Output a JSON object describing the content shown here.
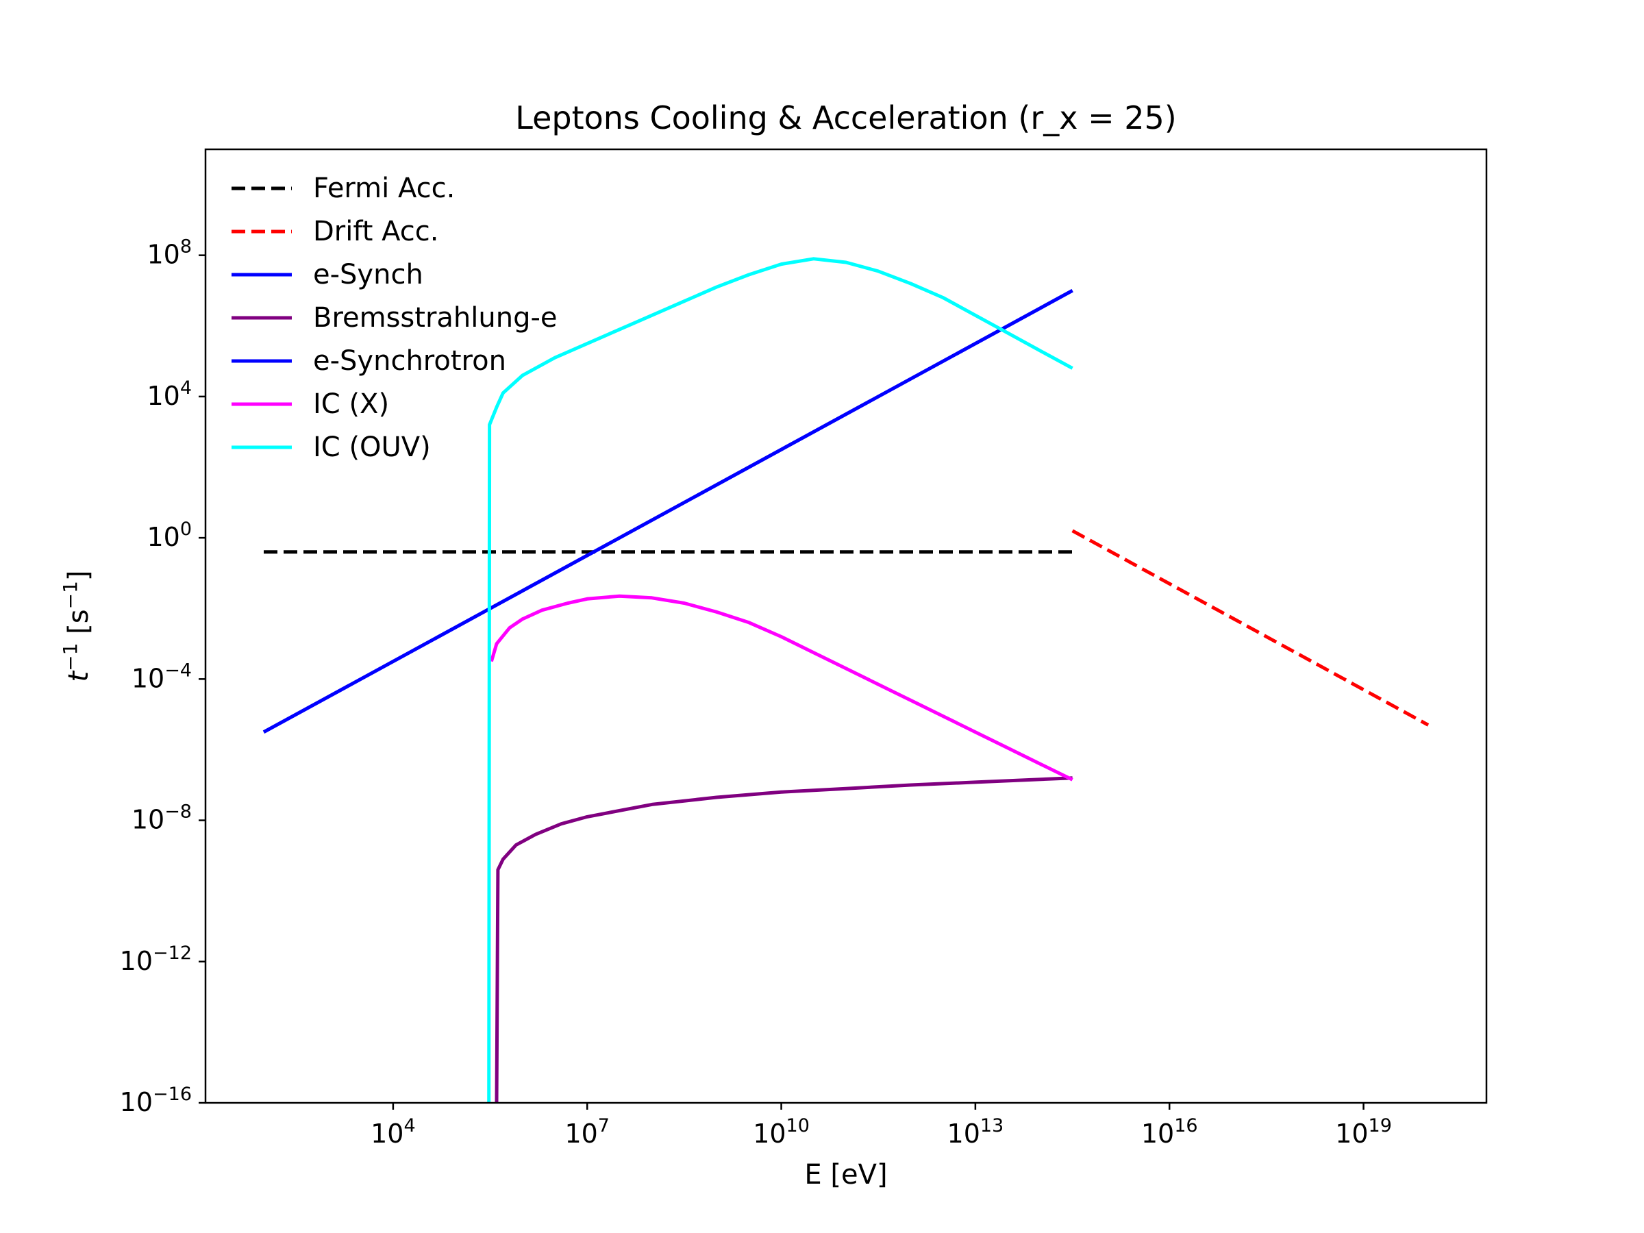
{
  "chart_data": {
    "type": "line",
    "title": "Leptons Cooling & Acceleration (r_x = 25)",
    "xlabel": "E [eV]",
    "ylabel": "t^{-1} [s^{-1}]",
    "xscale": "log",
    "yscale": "log",
    "xlim_exp": [
      1.1,
      20.9
    ],
    "ylim_exp": [
      -16,
      11
    ],
    "x_ticks": [
      {
        "base": "10",
        "exp": "4",
        "value_exp": 4
      },
      {
        "base": "10",
        "exp": "7",
        "value_exp": 7
      },
      {
        "base": "10",
        "exp": "10",
        "value_exp": 10
      },
      {
        "base": "10",
        "exp": "13",
        "value_exp": 13
      },
      {
        "base": "10",
        "exp": "16",
        "value_exp": 16
      },
      {
        "base": "10",
        "exp": "19",
        "value_exp": 19
      }
    ],
    "y_ticks": [
      {
        "base": "10",
        "exp": "−16",
        "value_exp": -16
      },
      {
        "base": "10",
        "exp": "−12",
        "value_exp": -12
      },
      {
        "base": "10",
        "exp": "−8",
        "value_exp": -8
      },
      {
        "base": "10",
        "exp": "−4",
        "value_exp": -4
      },
      {
        "base": "10",
        "exp": "0",
        "value_exp": 0
      },
      {
        "base": "10",
        "exp": "4",
        "value_exp": 4
      },
      {
        "base": "10",
        "exp": "8",
        "value_exp": 8
      }
    ],
    "grid": false,
    "legend_position": "top-left",
    "series": [
      {
        "name": "Fermi Acc.",
        "color": "#000000",
        "dashed": true,
        "points": [
          [
            2,
            -0.4
          ],
          [
            14.5,
            -0.4
          ]
        ]
      },
      {
        "name": "Drift Acc.",
        "color": "#ff0000",
        "dashed": true,
        "points": [
          [
            14.5,
            0.2
          ],
          [
            20,
            -5.3
          ]
        ]
      },
      {
        "name": "e-Synch",
        "color": "#0000ff",
        "dashed": false,
        "points": [
          [
            2,
            -5.5
          ],
          [
            14.5,
            7.0
          ]
        ]
      },
      {
        "name": "Bremsstrahlung-e",
        "color": "#800080",
        "dashed": false,
        "points": [
          [
            5.6,
            -16
          ],
          [
            5.62,
            -9.4
          ],
          [
            5.7,
            -9.1
          ],
          [
            5.9,
            -8.7
          ],
          [
            6.2,
            -8.4
          ],
          [
            6.6,
            -8.1
          ],
          [
            7.0,
            -7.9
          ],
          [
            8.0,
            -7.55
          ],
          [
            9.0,
            -7.35
          ],
          [
            10.0,
            -7.2
          ],
          [
            11.0,
            -7.1
          ],
          [
            12.0,
            -7.0
          ],
          [
            13.0,
            -6.92
          ],
          [
            14.5,
            -6.8
          ]
        ]
      },
      {
        "name": "e-Synchrotron",
        "color": "#0000ff",
        "dashed": false,
        "points": [
          [
            2,
            -5.5
          ],
          [
            14.5,
            7.0
          ]
        ]
      },
      {
        "name": "IC (X)",
        "color": "#ff00ff",
        "dashed": false,
        "points": [
          [
            5.52,
            -3.5
          ],
          [
            5.6,
            -3.0
          ],
          [
            5.8,
            -2.55
          ],
          [
            6.0,
            -2.3
          ],
          [
            6.3,
            -2.05
          ],
          [
            6.7,
            -1.85
          ],
          [
            7.0,
            -1.73
          ],
          [
            7.5,
            -1.65
          ],
          [
            8.0,
            -1.7
          ],
          [
            8.5,
            -1.85
          ],
          [
            9.0,
            -2.1
          ],
          [
            9.5,
            -2.4
          ],
          [
            10.0,
            -2.8
          ],
          [
            10.5,
            -3.25
          ],
          [
            11.0,
            -3.7
          ],
          [
            11.5,
            -4.15
          ],
          [
            12.0,
            -4.6
          ],
          [
            12.5,
            -5.05
          ],
          [
            13.0,
            -5.5
          ],
          [
            13.5,
            -5.95
          ],
          [
            14.0,
            -6.4
          ],
          [
            14.5,
            -6.85
          ]
        ]
      },
      {
        "name": "IC (OUV)",
        "color": "#00ffff",
        "dashed": false,
        "points": [
          [
            5.48,
            -16
          ],
          [
            5.49,
            3.2
          ],
          [
            5.6,
            3.7
          ],
          [
            5.7,
            4.1
          ],
          [
            6.0,
            4.6
          ],
          [
            6.5,
            5.1
          ],
          [
            7.0,
            5.5
          ],
          [
            7.5,
            5.9
          ],
          [
            8.0,
            6.3
          ],
          [
            8.5,
            6.7
          ],
          [
            9.0,
            7.1
          ],
          [
            9.5,
            7.45
          ],
          [
            10.0,
            7.75
          ],
          [
            10.5,
            7.9
          ],
          [
            11.0,
            7.8
          ],
          [
            11.5,
            7.55
          ],
          [
            12.0,
            7.2
          ],
          [
            12.5,
            6.8
          ],
          [
            13.0,
            6.3
          ],
          [
            13.5,
            5.8
          ],
          [
            14.0,
            5.3
          ],
          [
            14.5,
            4.8
          ]
        ]
      }
    ]
  }
}
